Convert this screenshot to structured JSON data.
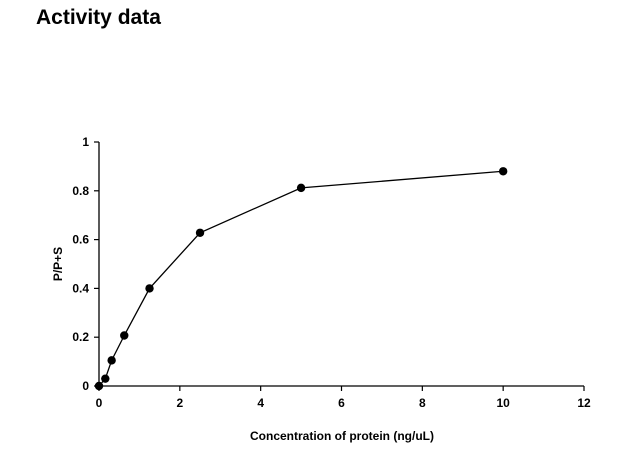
{
  "page": {
    "title": "Activity data"
  },
  "chart_data": {
    "type": "line",
    "title": "",
    "xlabel": "Concentration of protein (ng/uL)",
    "ylabel": "P/P+S",
    "xlim": [
      0,
      12
    ],
    "ylim": [
      0,
      1
    ],
    "xticks": [
      0,
      2,
      4,
      6,
      8,
      10,
      12
    ],
    "yticks": [
      0,
      0.2,
      0.4,
      0.6,
      0.8,
      1
    ],
    "xtick_labels": [
      "0",
      "2",
      "4",
      "6",
      "8",
      "10",
      "12"
    ],
    "ytick_labels": [
      "0",
      "0.2",
      "0.4",
      "0.6",
      "0.8",
      "1"
    ],
    "grid": false,
    "legend": "none",
    "series": [
      {
        "color": "#000000",
        "marker": "circle",
        "x": [
          0,
          0.156,
          0.313,
          0.625,
          1.25,
          2.5,
          5,
          10
        ],
        "y": [
          0.0,
          0.03,
          0.105,
          0.207,
          0.4,
          0.628,
          0.812,
          0.88
        ]
      }
    ]
  }
}
